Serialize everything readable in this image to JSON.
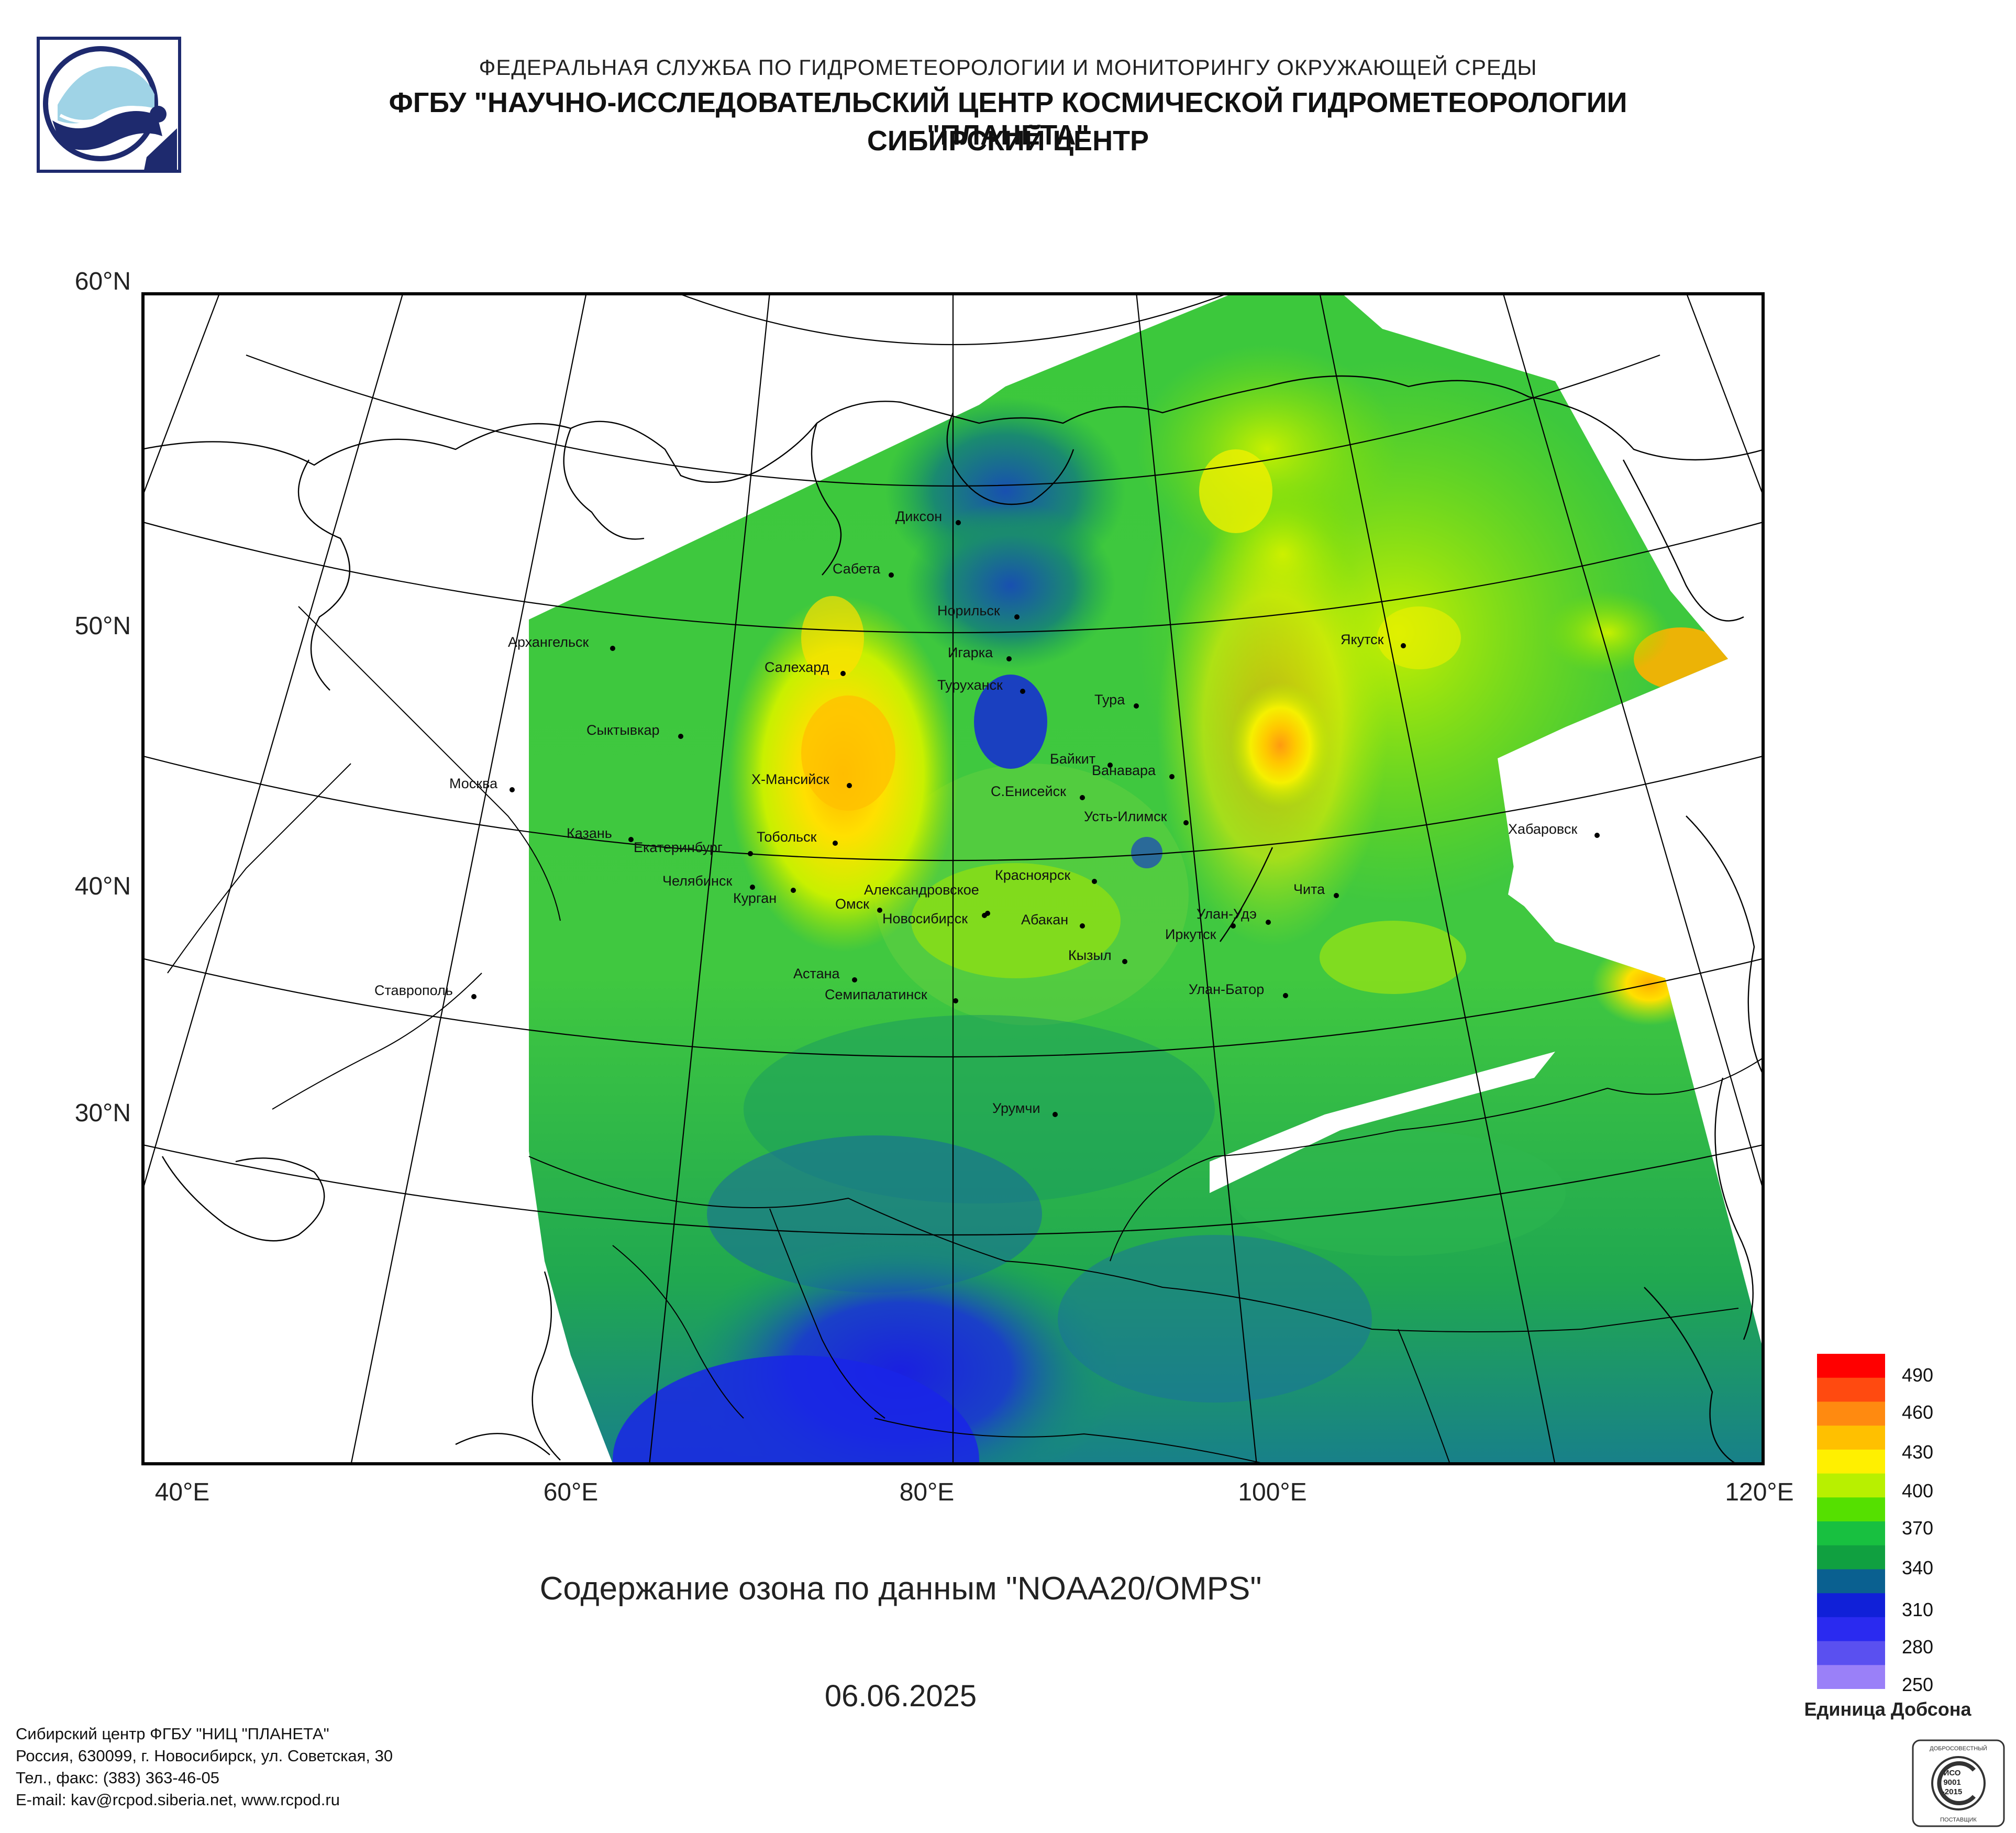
{
  "header": {
    "line1": "ФЕДЕРАЛЬНАЯ СЛУЖБА ПО ГИДРОМЕТЕОРОЛОГИИ И МОНИТОРИНГУ ОКРУЖАЮЩЕЙ СРЕДЫ",
    "line2": "ФГБУ \"НАУЧНО-ИССЛЕДОВАТЕЛЬСКИЙ ЦЕНТР КОСМИЧЕСКОЙ ГИДРОМЕТЕОРОЛОГИИ \"ПЛАНЕТА\"",
    "line3": "СИБИРСКИЙ ЦЕНТР"
  },
  "map": {
    "lat_labels": [
      "60°N",
      "50°N",
      "40°N",
      "30°N"
    ],
    "lon_labels": [
      "40°E",
      "60°E",
      "80°E",
      "100°E",
      "120°E"
    ],
    "cities": [
      {
        "name": "Диксон"
      },
      {
        "name": "Сабета"
      },
      {
        "name": "Норильск"
      },
      {
        "name": "Архангельск"
      },
      {
        "name": "Салехард"
      },
      {
        "name": "Игарка"
      },
      {
        "name": "Якутск"
      },
      {
        "name": "Туруханск"
      },
      {
        "name": "Тура"
      },
      {
        "name": "Сыктывкар"
      },
      {
        "name": "Байкит"
      },
      {
        "name": "Ванавара"
      },
      {
        "name": "Х-Мансийск"
      },
      {
        "name": "Москва"
      },
      {
        "name": "С.Енисейск"
      },
      {
        "name": "Усть-Илимск"
      },
      {
        "name": "Казань"
      },
      {
        "name": "Тобольск"
      },
      {
        "name": "Хабаровск"
      },
      {
        "name": "Екатеринбург"
      },
      {
        "name": "Челябинск"
      },
      {
        "name": "Красноярск"
      },
      {
        "name": "Чита"
      },
      {
        "name": "Александровское"
      },
      {
        "name": "Курган"
      },
      {
        "name": "Омск"
      },
      {
        "name": "Улан-Удэ"
      },
      {
        "name": "Новосибирск"
      },
      {
        "name": "Абакан"
      },
      {
        "name": "Иркутск"
      },
      {
        "name": "Кызыл"
      },
      {
        "name": "Астана"
      },
      {
        "name": "Ставрополь"
      },
      {
        "name": "Улан-Батор"
      },
      {
        "name": "Семипалатинск"
      },
      {
        "name": "Урумчи"
      }
    ]
  },
  "caption": "Содержание озона по данным \"NOAA20/OMPS\"",
  "date": "06.06.2025",
  "legend": {
    "ticks": [
      "490",
      "460",
      "430",
      "400",
      "370",
      "340",
      "310",
      "280",
      "250"
    ],
    "unit": "Единица Добсона",
    "colors": [
      "#ff0000",
      "#ff4a10",
      "#ff8a10",
      "#ffc000",
      "#fff000",
      "#b8f000",
      "#55e000",
      "#18c040",
      "#10a040",
      "#0a6090",
      "#1020d8",
      "#2a2af0",
      "#5a50f0",
      "#9a80f8"
    ]
  },
  "footer": {
    "line1": "Сибирский центр ФГБУ \"НИЦ \"ПЛАНЕТА\"",
    "line2": "Россия, 630099, г. Новосибирск, ул. Советская, 30",
    "line3": "Тел., факс: (383) 363-46-05",
    "line4": "E-mail: kav@rcpod.siberia.net, www.rcpod.ru"
  },
  "badge": {
    "top": "ДОБРОСОВЕСТНЫЙ",
    "line1": "ИСО",
    "line2": "9001",
    "line3": "-2015",
    "bottom": "ПОСТАВЩИК"
  }
}
